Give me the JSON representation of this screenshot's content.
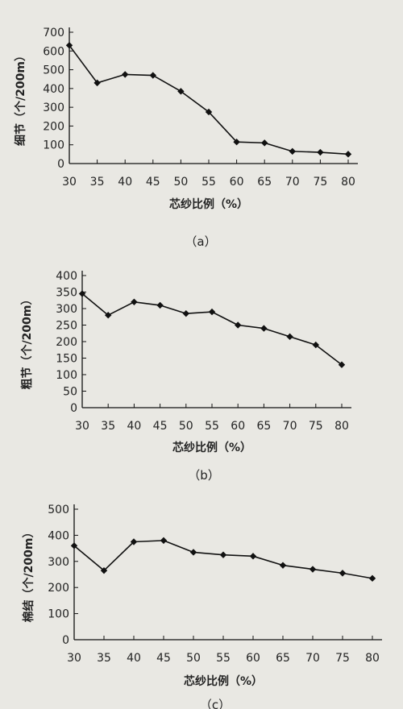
{
  "chart_data": [
    {
      "type": "line",
      "panel_label": "（a）",
      "xlabel": "芯纱比例（%）",
      "ylabel": "细节（个/200m）",
      "x": [
        30,
        35,
        40,
        45,
        50,
        55,
        60,
        65,
        70,
        75,
        80
      ],
      "values": [
        630,
        430,
        475,
        470,
        385,
        275,
        115,
        110,
        65,
        60,
        50
      ],
      "xticks": [
        "30",
        "35",
        "40",
        "45",
        "50",
        "55",
        "60",
        "65",
        "70",
        "75",
        "80"
      ],
      "yticks": [
        "0",
        "100",
        "200",
        "300",
        "400",
        "500",
        "600",
        "700"
      ],
      "ylim": [
        0,
        700
      ],
      "grid": false
    },
    {
      "type": "line",
      "panel_label": "（b）",
      "xlabel": "芯纱比例（%）",
      "ylabel": "粗节（个/200m）",
      "x": [
        30,
        35,
        40,
        45,
        50,
        55,
        60,
        65,
        70,
        75,
        80
      ],
      "values": [
        345,
        280,
        320,
        310,
        285,
        290,
        250,
        240,
        215,
        190,
        130
      ],
      "xticks": [
        "30",
        "35",
        "40",
        "45",
        "50",
        "55",
        "60",
        "65",
        "70",
        "75",
        "80"
      ],
      "yticks": [
        "0",
        "50",
        "100",
        "150",
        "200",
        "250",
        "300",
        "350",
        "400"
      ],
      "ylim": [
        0,
        400
      ],
      "grid": false
    },
    {
      "type": "line",
      "panel_label": "（c）",
      "xlabel": "芯纱比例（%）",
      "ylabel": "棉结（个/200m）",
      "x": [
        30,
        35,
        40,
        45,
        50,
        55,
        60,
        65,
        70,
        75,
        80
      ],
      "values": [
        360,
        265,
        375,
        380,
        335,
        325,
        320,
        285,
        270,
        255,
        235
      ],
      "xticks": [
        "30",
        "35",
        "40",
        "45",
        "50",
        "55",
        "60",
        "65",
        "70",
        "75",
        "80"
      ],
      "yticks": [
        "0",
        "100",
        "200",
        "300",
        "400",
        "500"
      ],
      "ylim": [
        0,
        500
      ],
      "grid": false
    }
  ]
}
